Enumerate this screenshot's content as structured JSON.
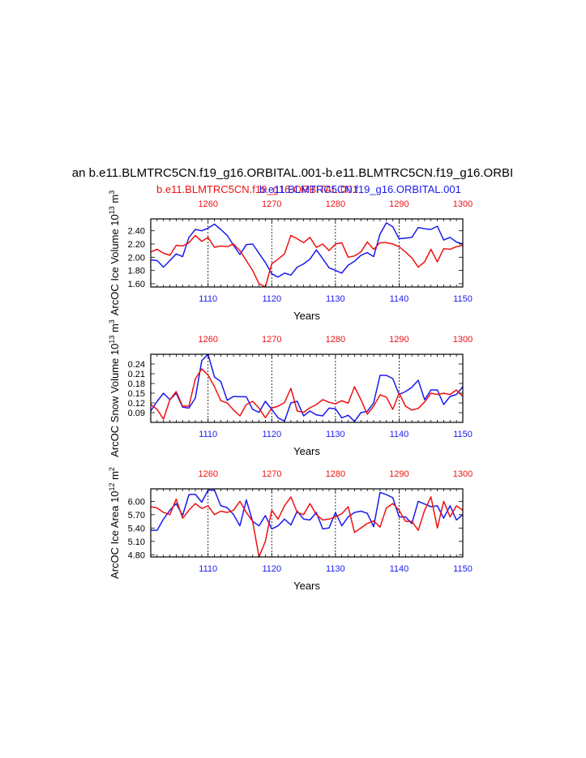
{
  "figure": {
    "title": "an b.e11.BLMTRC5CN.f19_g16.ORBITAL.001-b.e11.BLMTRC5CN.f19_g16.ORBI",
    "legend_red": "b.e11.BLMTRC5CN.f19_g16.ORBITAL.001",
    "legend_blue": "b.e11.BLMTRC5CN.f19_g16.ORBITAL.001",
    "colors": {
      "red": "#ee1111",
      "blue": "#1a1aee"
    }
  },
  "chart_data": [
    {
      "type": "line",
      "ylabel": "ArcOC Ice Volume 10^13 m^3",
      "ylabel_parts": [
        "ArcOC Ice Volume 10",
        "13",
        " m",
        "3"
      ],
      "xlabel": "Years",
      "xlim": [
        1101,
        1150
      ],
      "top_xlim": [
        1251,
        1300
      ],
      "ylim": [
        1.55,
        2.58
      ],
      "yticks": [
        1.6,
        1.8,
        2.0,
        2.2,
        2.4
      ],
      "ytick_labels": [
        "1.60",
        "1.80",
        "2.00",
        "2.20",
        "2.40"
      ],
      "xticks": [
        1110,
        1120,
        1130,
        1140,
        1150
      ],
      "top_xticks": [
        1260,
        1270,
        1280,
        1290,
        1300
      ],
      "x": [
        1101,
        1102,
        1103,
        1104,
        1105,
        1106,
        1107,
        1108,
        1109,
        1110,
        1111,
        1112,
        1113,
        1114,
        1115,
        1116,
        1117,
        1118,
        1119,
        1120,
        1121,
        1122,
        1123,
        1124,
        1125,
        1126,
        1127,
        1128,
        1129,
        1130,
        1131,
        1132,
        1133,
        1134,
        1135,
        1136,
        1137,
        1138,
        1139,
        1140,
        1141,
        1142,
        1143,
        1144,
        1145,
        1146,
        1147,
        1148,
        1149,
        1150
      ],
      "series": [
        {
          "name": "blue",
          "color": "#1a1aee",
          "values": [
            1.96,
            1.95,
            1.85,
            1.95,
            2.05,
            2.01,
            2.3,
            2.42,
            2.4,
            2.44,
            2.5,
            2.42,
            2.33,
            2.18,
            2.04,
            2.19,
            2.2,
            2.06,
            1.92,
            1.75,
            1.7,
            1.76,
            1.73,
            1.85,
            1.9,
            1.97,
            2.11,
            1.98,
            1.84,
            1.8,
            1.76,
            1.88,
            1.94,
            2.03,
            2.07,
            2.01,
            2.35,
            2.52,
            2.46,
            2.28,
            2.29,
            2.3,
            2.45,
            2.43,
            2.42,
            2.47,
            2.26,
            2.3,
            2.23,
            2.2
          ]
        },
        {
          "name": "red",
          "color": "#ee1111",
          "values": [
            2.08,
            2.12,
            2.06,
            2.03,
            2.18,
            2.17,
            2.22,
            2.33,
            2.24,
            2.3,
            2.15,
            2.17,
            2.16,
            2.2,
            2.1,
            1.95,
            1.8,
            1.6,
            1.55,
            1.9,
            1.97,
            2.05,
            2.33,
            2.28,
            2.22,
            2.3,
            2.15,
            2.2,
            2.1,
            2.2,
            2.22,
            2.0,
            2.02,
            2.08,
            2.23,
            2.12,
            2.22,
            2.22,
            2.2,
            2.16,
            2.08,
            1.99,
            1.85,
            1.93,
            2.12,
            1.93,
            2.13,
            2.12,
            2.16,
            2.18
          ]
        }
      ]
    },
    {
      "type": "line",
      "ylabel": "ArcOC Snow Volume 10^13 m^3",
      "ylabel_parts": [
        "ArcOC Snow Volume 10",
        "13",
        " m",
        "3"
      ],
      "xlabel": "Years",
      "xlim": [
        1101,
        1150
      ],
      "top_xlim": [
        1251,
        1300
      ],
      "ylim": [
        0.06,
        0.27
      ],
      "yticks": [
        0.09,
        0.12,
        0.15,
        0.18,
        0.21,
        0.24
      ],
      "ytick_labels": [
        "0.09",
        "0.12",
        "0.15",
        "0.18",
        "0.21",
        "0.24"
      ],
      "xticks": [
        1110,
        1120,
        1130,
        1140,
        1150
      ],
      "top_xticks": [
        1260,
        1270,
        1280,
        1290,
        1300
      ],
      "x": [
        1101,
        1102,
        1103,
        1104,
        1105,
        1106,
        1107,
        1108,
        1109,
        1110,
        1111,
        1112,
        1113,
        1114,
        1115,
        1116,
        1117,
        1118,
        1119,
        1120,
        1121,
        1122,
        1123,
        1124,
        1125,
        1126,
        1127,
        1128,
        1129,
        1130,
        1131,
        1132,
        1133,
        1134,
        1135,
        1136,
        1137,
        1138,
        1139,
        1140,
        1141,
        1142,
        1143,
        1144,
        1145,
        1146,
        1147,
        1148,
        1149,
        1150
      ],
      "series": [
        {
          "name": "blue",
          "color": "#1a1aee",
          "values": [
            0.095,
            0.125,
            0.15,
            0.13,
            0.15,
            0.107,
            0.104,
            0.135,
            0.25,
            0.27,
            0.2,
            0.186,
            0.128,
            0.14,
            0.139,
            0.139,
            0.1,
            0.091,
            0.125,
            0.1,
            0.074,
            0.064,
            0.12,
            0.125,
            0.08,
            0.095,
            0.083,
            0.08,
            0.104,
            0.102,
            0.074,
            0.082,
            0.063,
            0.09,
            0.094,
            0.12,
            0.205,
            0.205,
            0.195,
            0.146,
            0.155,
            0.168,
            0.19,
            0.13,
            0.16,
            0.16,
            0.115,
            0.14,
            0.146,
            0.17
          ]
        },
        {
          "name": "red",
          "color": "#ee1111",
          "values": [
            0.115,
            0.1,
            0.07,
            0.13,
            0.155,
            0.11,
            0.11,
            0.194,
            0.225,
            0.206,
            0.17,
            0.127,
            0.12,
            0.098,
            0.08,
            0.115,
            0.125,
            0.104,
            0.074,
            0.104,
            0.11,
            0.121,
            0.165,
            0.095,
            0.091,
            0.105,
            0.115,
            0.13,
            0.122,
            0.117,
            0.127,
            0.119,
            0.17,
            0.13,
            0.085,
            0.11,
            0.145,
            0.138,
            0.1,
            0.15,
            0.11,
            0.098,
            0.103,
            0.123,
            0.15,
            0.146,
            0.15,
            0.146,
            0.16,
            0.14
          ]
        }
      ]
    },
    {
      "type": "line",
      "ylabel": "ArcOC Ice Area 10^12 m^2",
      "ylabel_parts": [
        "ArcOC Ice Area 10",
        "12",
        " m",
        "2"
      ],
      "xlabel": "Years",
      "xlim": [
        1101,
        1150
      ],
      "top_xlim": [
        1251,
        1300
      ],
      "ylim": [
        4.75,
        6.28
      ],
      "yticks": [
        4.8,
        5.1,
        5.4,
        5.7,
        6.0
      ],
      "ytick_labels": [
        "4.80",
        "5.10",
        "5.40",
        "5.70",
        "6.00"
      ],
      "xticks": [
        1110,
        1120,
        1130,
        1140,
        1150
      ],
      "top_xticks": [
        1260,
        1270,
        1280,
        1290,
        1300
      ],
      "x": [
        1101,
        1102,
        1103,
        1104,
        1105,
        1106,
        1107,
        1108,
        1109,
        1110,
        1111,
        1112,
        1113,
        1114,
        1115,
        1116,
        1117,
        1118,
        1119,
        1120,
        1121,
        1122,
        1123,
        1124,
        1125,
        1126,
        1127,
        1128,
        1129,
        1130,
        1131,
        1132,
        1133,
        1134,
        1135,
        1136,
        1137,
        1138,
        1139,
        1140,
        1141,
        1142,
        1143,
        1144,
        1145,
        1146,
        1147,
        1148,
        1149,
        1150
      ],
      "series": [
        {
          "name": "blue",
          "color": "#1a1aee",
          "values": [
            5.35,
            5.35,
            5.6,
            5.8,
            5.95,
            5.68,
            6.15,
            6.16,
            5.98,
            6.25,
            6.25,
            5.9,
            5.86,
            5.7,
            5.45,
            6.03,
            5.55,
            5.45,
            5.68,
            5.38,
            5.45,
            5.6,
            5.47,
            5.78,
            5.6,
            5.58,
            5.75,
            5.38,
            5.4,
            5.75,
            5.45,
            5.65,
            5.75,
            5.78,
            5.73,
            5.43,
            6.2,
            6.15,
            6.08,
            5.65,
            5.65,
            5.5,
            6.0,
            5.94,
            5.88,
            5.9,
            5.62,
            5.9,
            5.58,
            5.7
          ]
        },
        {
          "name": "red",
          "color": "#ee1111",
          "values": [
            5.88,
            5.85,
            5.75,
            5.7,
            6.05,
            5.62,
            5.8,
            5.95,
            5.84,
            5.9,
            5.7,
            5.78,
            5.75,
            5.8,
            6.0,
            5.75,
            5.55,
            4.75,
            5.1,
            5.8,
            5.6,
            5.9,
            6.1,
            5.75,
            5.7,
            5.95,
            5.7,
            5.58,
            5.6,
            5.65,
            5.72,
            5.88,
            5.3,
            5.4,
            5.5,
            5.56,
            5.42,
            5.85,
            5.95,
            5.8,
            5.55,
            5.55,
            5.35,
            5.8,
            6.1,
            5.4,
            6.0,
            5.65,
            5.9,
            5.8
          ]
        }
      ]
    }
  ]
}
